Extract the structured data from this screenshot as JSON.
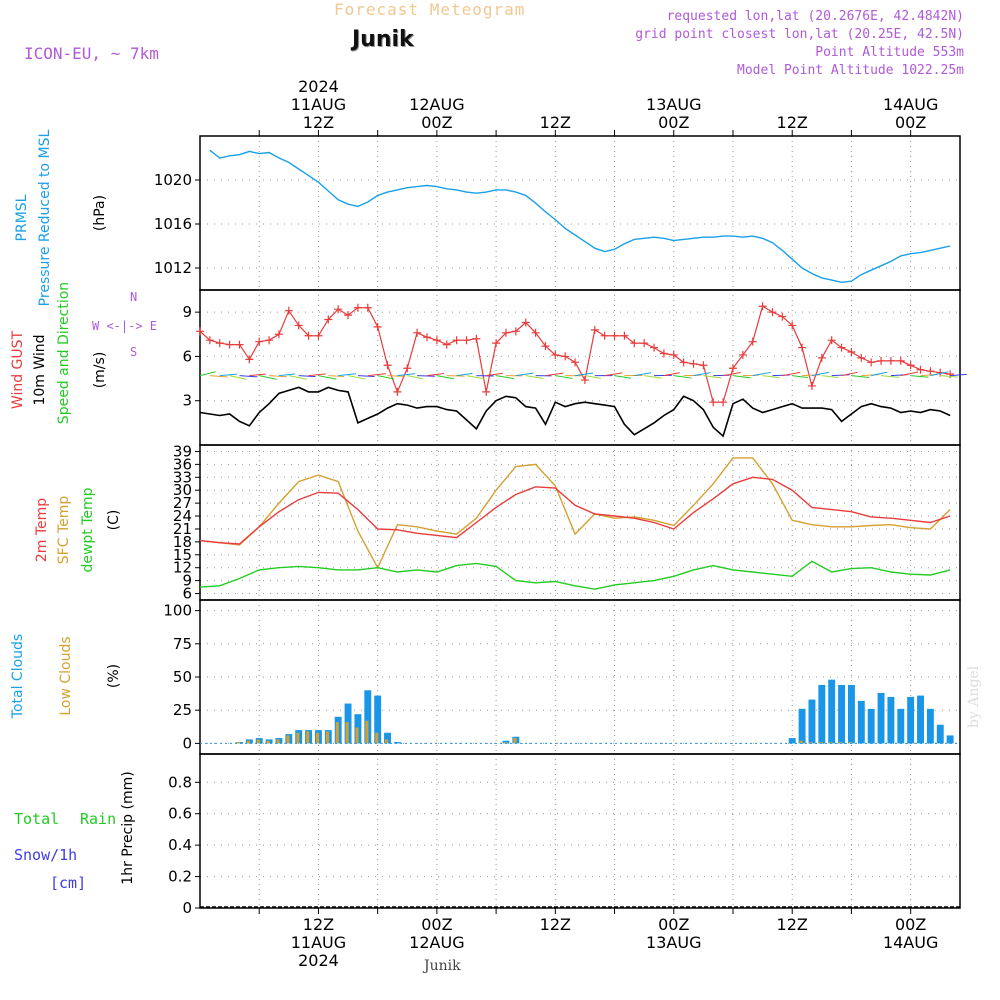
{
  "header": {
    "chart_title": "Forecast Meteogram",
    "location": "Junik",
    "model": "ICON-EU, ~ 7km",
    "requested": "requested lon,lat (20.2676E, 42.4842N)",
    "grid_point": "grid point closest lon,lat (20.25E, 42.5N)",
    "point_altitude": "Point Altitude 553m",
    "model_altitude": "Model Point Altitude 1022.25m",
    "footer_location": "Junik",
    "credit": "by Angel"
  },
  "time_axis": {
    "top_labels": [
      {
        "hour": 12,
        "lines": [
          "2024",
          "11AUG",
          "12Z"
        ]
      },
      {
        "hour": 24,
        "lines": [
          "12AUG",
          "00Z"
        ]
      },
      {
        "hour": 36,
        "lines": [
          "12Z"
        ]
      },
      {
        "hour": 48,
        "lines": [
          "13AUG",
          "00Z"
        ]
      },
      {
        "hour": 60,
        "lines": [
          "12Z"
        ]
      },
      {
        "hour": 72,
        "lines": [
          "14AUG",
          "00Z"
        ]
      }
    ],
    "bottom_labels": [
      {
        "hour": 12,
        "lines": [
          "12Z",
          "11AUG",
          "2024"
        ]
      },
      {
        "hour": 24,
        "lines": [
          "00Z",
          "12AUG"
        ]
      },
      {
        "hour": 36,
        "lines": [
          "12Z"
        ]
      },
      {
        "hour": 48,
        "lines": [
          "00Z",
          "13AUG"
        ]
      },
      {
        "hour": 60,
        "lines": [
          "12Z"
        ]
      },
      {
        "hour": 72,
        "lines": [
          "00Z",
          "14AUG"
        ]
      }
    ]
  },
  "panel_labels": {
    "pressure": [
      "PRMSL",
      "Pressure Reduced to MSL",
      "(hPa)"
    ],
    "wind": [
      "Wind GUST",
      "10m Wind",
      "Speed and Direction",
      "(m/s)"
    ],
    "compass": [
      "N",
      "W <-|-> E",
      "S"
    ],
    "temp": [
      "2m Temp",
      "SFC Temp",
      "dewpt Temp",
      "(C)"
    ],
    "clouds": [
      "Total Clouds",
      "Low Clouds",
      "(%)"
    ],
    "precip": [
      "Total",
      "Rain",
      "Snow/1h",
      "[cm]",
      "1hr Precip (mm)"
    ]
  },
  "colors": {
    "pressure": "#1aa0e8",
    "gust": "#e83c3c",
    "wind": "#000000",
    "sfc_temp": "#d4a030",
    "t2m": "#e83c3c",
    "dewpt": "#22cc22",
    "total_clouds": "#1a96e8",
    "low_clouds": "#d4a030",
    "rain": "#22cc22",
    "snow": "#3c3ce8"
  },
  "chart_data": [
    {
      "type": "line",
      "name": "pressure",
      "ylim": [
        1010,
        1024
      ],
      "yticks": [
        1012,
        1016,
        1020
      ],
      "x": [
        1,
        2,
        3,
        4,
        5,
        6,
        7,
        8,
        9,
        10,
        11,
        12,
        13,
        14,
        15,
        16,
        17,
        18,
        19,
        20,
        21,
        22,
        23,
        24,
        25,
        26,
        27,
        28,
        29,
        30,
        31,
        32,
        33,
        34,
        35,
        36,
        37,
        38,
        39,
        40,
        41,
        42,
        43,
        44,
        45,
        46,
        47,
        48,
        49,
        50,
        51,
        52,
        53,
        54,
        55,
        56,
        57,
        58,
        59,
        60,
        61,
        62,
        63,
        64,
        65,
        66,
        67,
        68,
        69,
        70,
        71,
        72,
        73,
        74,
        75,
        76
      ],
      "series": [
        {
          "name": "PRMSL",
          "values": [
            1022.7,
            1022.0,
            1022.2,
            1022.3,
            1022.6,
            1022.4,
            1022.5,
            1022.0,
            1021.6,
            1021.0,
            1020.4,
            1019.8,
            1019.0,
            1018.2,
            1017.8,
            1017.6,
            1018.0,
            1018.6,
            1018.9,
            1019.1,
            1019.3,
            1019.4,
            1019.5,
            1019.4,
            1019.2,
            1019.1,
            1018.9,
            1018.8,
            1018.9,
            1019.1,
            1019.1,
            1018.9,
            1018.6,
            1017.9,
            1017.1,
            1016.4,
            1015.6,
            1015.0,
            1014.4,
            1013.8,
            1013.5,
            1013.7,
            1014.2,
            1014.6,
            1014.7,
            1014.8,
            1014.7,
            1014.5,
            1014.6,
            1014.7,
            1014.8,
            1014.8,
            1014.9,
            1014.9,
            1014.8,
            1014.9,
            1014.7,
            1014.3,
            1013.6,
            1012.8,
            1012.0,
            1011.5,
            1011.1,
            1010.9,
            1010.7,
            1010.8,
            1011.4,
            1011.8,
            1012.2,
            1012.6,
            1013.1,
            1013.3,
            1013.4,
            1013.6,
            1013.8,
            1014.0
          ]
        }
      ]
    },
    {
      "type": "line",
      "name": "wind",
      "ylim": [
        0,
        10.5
      ],
      "yticks": [
        3,
        6,
        9
      ],
      "x": [
        0,
        1,
        2,
        3,
        4,
        5,
        6,
        7,
        8,
        9,
        10,
        11,
        12,
        13,
        14,
        15,
        16,
        17,
        18,
        19,
        20,
        21,
        22,
        23,
        24,
        25,
        26,
        27,
        28,
        29,
        30,
        31,
        32,
        33,
        34,
        35,
        36,
        37,
        38,
        39,
        40,
        41,
        42,
        43,
        44,
        45,
        46,
        47,
        48,
        49,
        50,
        51,
        52,
        53,
        54,
        55,
        56,
        57,
        58,
        59,
        60,
        61,
        62,
        63,
        64,
        65,
        66,
        67,
        68,
        69,
        70,
        71,
        72,
        73,
        74,
        75,
        76
      ],
      "series": [
        {
          "name": "Wind GUST",
          "values": [
            7.7,
            7.1,
            6.9,
            6.8,
            6.8,
            5.8,
            7.0,
            7.1,
            7.5,
            9.1,
            8.1,
            7.4,
            7.4,
            8.5,
            9.2,
            8.8,
            9.3,
            9.3,
            8.0,
            5.4,
            3.6,
            5.2,
            7.6,
            7.3,
            7.1,
            6.8,
            7.1,
            7.1,
            7.2,
            3.6,
            6.9,
            7.6,
            7.7,
            8.3,
            7.6,
            6.7,
            6.1,
            6.0,
            5.6,
            4.4,
            7.8,
            7.4,
            7.4,
            7.4,
            6.9,
            6.9,
            6.6,
            6.2,
            6.1,
            5.6,
            5.5,
            5.4,
            2.9,
            2.9,
            5.2,
            6.1,
            7.0,
            9.4,
            9.0,
            8.7,
            8.1,
            6.6,
            4.0,
            5.9,
            7.1,
            6.6,
            6.3,
            5.9,
            5.6,
            5.7,
            5.7,
            5.7,
            5.4,
            5.1,
            5.0,
            4.9,
            4.8
          ]
        },
        {
          "name": "10m Wind",
          "values": [
            2.2,
            2.1,
            2.0,
            2.1,
            1.6,
            1.3,
            2.2,
            2.8,
            3.5,
            3.7,
            3.9,
            3.6,
            3.6,
            3.9,
            3.7,
            3.6,
            1.5,
            1.8,
            2.1,
            2.5,
            2.8,
            2.7,
            2.5,
            2.6,
            2.6,
            2.4,
            2.3,
            1.7,
            1.1,
            2.3,
            3.0,
            3.3,
            3.2,
            2.6,
            2.5,
            1.4,
            2.9,
            2.6,
            2.8,
            2.9,
            2.8,
            2.7,
            2.6,
            1.4,
            0.7,
            1.1,
            1.5,
            2.0,
            2.4,
            3.3,
            3.0,
            2.4,
            1.2,
            0.6,
            2.8,
            3.1,
            2.5,
            2.2,
            2.4,
            2.6,
            2.8,
            2.5,
            2.5,
            2.5,
            2.4,
            1.6,
            2.1,
            2.6,
            2.8,
            2.6,
            2.5,
            2.2,
            2.3,
            2.2,
            2.4,
            2.3,
            2.0
          ]
        }
      ]
    },
    {
      "type": "line",
      "name": "temperature",
      "ylim": [
        4.5,
        40.5
      ],
      "yticks": [
        6,
        9,
        12,
        15,
        18,
        21,
        24,
        27,
        30,
        33,
        36,
        39
      ],
      "x": [
        0,
        2,
        4,
        6,
        8,
        10,
        12,
        14,
        16,
        18,
        20,
        22,
        24,
        26,
        28,
        30,
        32,
        34,
        36,
        38,
        40,
        42,
        44,
        46,
        48,
        50,
        52,
        54,
        56,
        58,
        60,
        62,
        64,
        66,
        68,
        70,
        72,
        74,
        76
      ],
      "series": [
        {
          "name": "2m Temp",
          "values": [
            18.3,
            17.8,
            17.5,
            21.5,
            25.0,
            27.8,
            29.5,
            29.3,
            25.5,
            21.0,
            20.8,
            20.0,
            19.5,
            19.0,
            22.5,
            26.0,
            29.0,
            30.8,
            30.5,
            26.5,
            24.5,
            24.0,
            23.5,
            22.5,
            21.0,
            24.8,
            28.0,
            31.5,
            33.0,
            32.5,
            30.0,
            26.0,
            25.5,
            25.0,
            23.8,
            23.5,
            23.0,
            22.5,
            24.0
          ]
        },
        {
          "name": "SFC Temp",
          "values": [
            18.3,
            17.8,
            17.3,
            21.5,
            27.0,
            32.0,
            33.5,
            32.0,
            20.5,
            12.0,
            22.0,
            21.5,
            20.5,
            19.8,
            23.5,
            30.0,
            35.5,
            36.0,
            31.0,
            19.8,
            24.5,
            23.5,
            23.8,
            23.0,
            21.8,
            26.5,
            31.5,
            37.5,
            37.5,
            31.5,
            23.0,
            22.0,
            21.5,
            21.5,
            21.8,
            22.0,
            21.3,
            21.0,
            25.5
          ]
        },
        {
          "name": "dewpt Temp",
          "values": [
            7.5,
            7.8,
            9.5,
            11.5,
            12.0,
            12.3,
            12.0,
            11.5,
            11.5,
            12.0,
            11.0,
            11.5,
            11.0,
            12.5,
            13.0,
            12.3,
            9.0,
            8.5,
            8.8,
            7.8,
            7.0,
            8.0,
            8.5,
            9.0,
            10.0,
            11.5,
            12.5,
            11.5,
            11.0,
            10.5,
            10.0,
            13.5,
            11.0,
            11.8,
            12.0,
            11.0,
            10.5,
            10.3,
            11.5
          ]
        }
      ]
    },
    {
      "type": "bar",
      "name": "clouds",
      "ylim": [
        -8,
        108
      ],
      "yticks": [
        0,
        25,
        50,
        75,
        100
      ],
      "x": [
        4,
        5,
        6,
        7,
        8,
        9,
        10,
        11,
        12,
        13,
        14,
        15,
        16,
        17,
        18,
        19,
        20,
        31,
        32,
        48,
        49,
        50,
        51,
        52,
        53,
        54,
        55,
        56,
        57,
        58,
        59,
        60,
        61,
        62,
        63,
        64,
        65,
        66,
        67,
        68,
        69,
        70,
        71,
        72,
        73,
        74,
        75,
        76
      ],
      "series": [
        {
          "name": "Total Clouds",
          "values": [
            1,
            3,
            4,
            3,
            4,
            7,
            10,
            10,
            10,
            10,
            20,
            30,
            22,
            40,
            36,
            8,
            1,
            2,
            5,
            0,
            0,
            0,
            0,
            0,
            0,
            0,
            0,
            0,
            0,
            0,
            0,
            4,
            26,
            33,
            44,
            48,
            44,
            44,
            32,
            26,
            38,
            35,
            26,
            35,
            36,
            26,
            14,
            6
          ]
        },
        {
          "name": "Low Clouds",
          "values": [
            1,
            2,
            3,
            2,
            3,
            6,
            8,
            9,
            8,
            9,
            16,
            16,
            12,
            17,
            8,
            3,
            0,
            1,
            4,
            0,
            0,
            0,
            0,
            0,
            0,
            0,
            0,
            0,
            0,
            0,
            0,
            0,
            2,
            1,
            1,
            1,
            1,
            1,
            0,
            0,
            0,
            0,
            0,
            0,
            0,
            0,
            0,
            0
          ]
        }
      ]
    },
    {
      "type": "bar",
      "name": "precipitation",
      "ylim": [
        0,
        0.98
      ],
      "yticks": [
        0,
        0.2,
        0.4,
        0.6,
        0.8
      ],
      "series": [
        {
          "name": "Rain",
          "values": []
        },
        {
          "name": "Snow/1h",
          "values": []
        }
      ]
    }
  ]
}
